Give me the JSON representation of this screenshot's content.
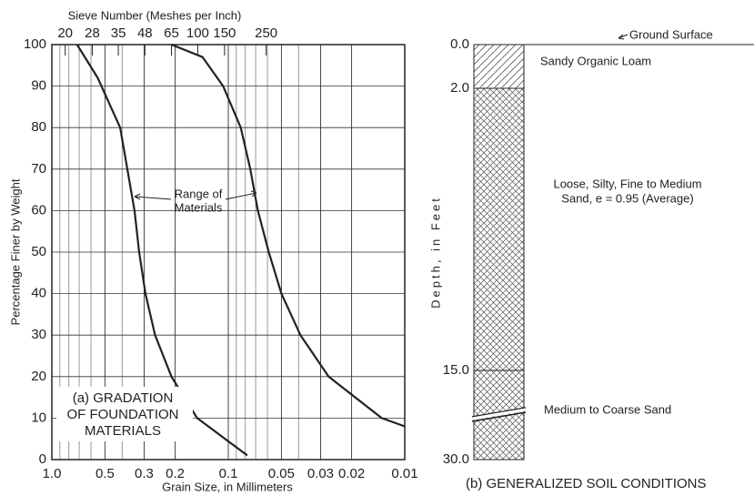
{
  "chart_data": {
    "type": "line",
    "title_top": "Sieve Number (Meshes per Inch)",
    "xlabel": "Grain Size, in Millimeters",
    "ylabel": "Percentage Finer by Weight",
    "xscale": "log",
    "grid": true,
    "xlim": [
      1,
      0.01
    ],
    "ylim": [
      0,
      100
    ],
    "xticks": [
      {
        "value": 1,
        "label": "1.0"
      },
      0.5,
      0.3,
      0.2,
      0.1,
      0.05,
      0.03,
      0.02,
      0.01
    ],
    "x_minor_ticks": [
      0.9,
      0.8,
      0.7,
      0.6,
      0.4,
      0.09,
      0.08,
      0.07,
      0.06,
      0.04
    ],
    "yticks": [
      0,
      10,
      20,
      30,
      40,
      50,
      60,
      70,
      80,
      90,
      100
    ],
    "x2ticks": [
      {
        "value": 0.84,
        "label": "20"
      },
      {
        "value": 0.59,
        "label": "28"
      },
      {
        "value": 0.42,
        "label": "35"
      },
      {
        "value": 0.297,
        "label": "48"
      },
      {
        "value": 0.21,
        "label": "65"
      },
      {
        "value": 0.149,
        "label": "100"
      },
      {
        "value": 0.105,
        "label": "150"
      },
      {
        "value": 0.061,
        "label": "250"
      }
    ],
    "series": [
      {
        "color": "#222",
        "x": [
          0.72,
          0.55,
          0.41,
          0.34,
          0.32,
          0.295,
          0.26,
          0.21,
          0.15,
          0.078
        ],
        "values": [
          100,
          92,
          80,
          60,
          50,
          40,
          30,
          20,
          10,
          1
        ]
      },
      {
        "color": "#222",
        "x": [
          0.21,
          0.14,
          0.107,
          0.085,
          0.075,
          0.068,
          0.059,
          0.05,
          0.039,
          0.027,
          0.0135,
          0.01
        ],
        "values": [
          100,
          97,
          90,
          80,
          70,
          60,
          50,
          40,
          30,
          20,
          10,
          8
        ]
      }
    ],
    "annotation": [
      "Range of",
      "Materials"
    ],
    "caption": [
      "(a) GRADATION",
      "OF FOUNDATION",
      "MATERIALS"
    ]
  },
  "soil_profile": {
    "ground_surface": "Ground Surface",
    "axis_label": "Depth, in Feet",
    "depth_labels": [
      "0.0",
      "2.0",
      "15.0",
      "30.0"
    ],
    "layers": [
      [
        "Sandy Organic Loam"
      ],
      [
        "Loose, Silty, Fine to Medium",
        "Sand, e = 0.95 (Average)"
      ],
      [
        "Medium to Coarse Sand"
      ]
    ],
    "caption": "(b) GENERALIZED SOIL CONDITIONS"
  }
}
